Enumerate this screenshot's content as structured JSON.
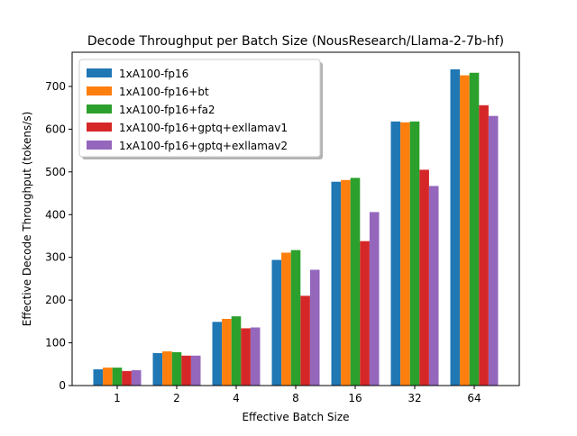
{
  "chart_data": {
    "type": "bar",
    "title": "Decode Throughput per Batch Size (NousResearch/Llama-2-7b-hf)",
    "xlabel": "Effective Batch Size",
    "ylabel": "Effective Decode Throughput (tokens/s)",
    "categories": [
      "1",
      "2",
      "4",
      "8",
      "16",
      "32",
      "64"
    ],
    "ylim": [
      0,
      780
    ],
    "yticks": [
      0,
      100,
      200,
      300,
      400,
      500,
      600,
      700
    ],
    "grid": false,
    "legend_position": "top-left",
    "series": [
      {
        "name": "1xA100-fp16",
        "color": "#1f77b4",
        "values": [
          38,
          76,
          149,
          294,
          477,
          618,
          740
        ]
      },
      {
        "name": "1xA100-fp16+bt",
        "color": "#ff7f0e",
        "values": [
          42,
          80,
          156,
          311,
          481,
          616,
          726
        ]
      },
      {
        "name": "1xA100-fp16+fa2",
        "color": "#2ca02c",
        "values": [
          42,
          78,
          162,
          317,
          486,
          618,
          732
        ]
      },
      {
        "name": "1xA100-fp16+gptq+exllamav1",
        "color": "#d62728",
        "values": [
          34,
          70,
          134,
          210,
          338,
          505,
          656
        ]
      },
      {
        "name": "1xA100-fp16+gptq+exllamav2",
        "color": "#9467bd",
        "values": [
          36,
          70,
          136,
          271,
          406,
          467,
          631
        ]
      }
    ]
  }
}
